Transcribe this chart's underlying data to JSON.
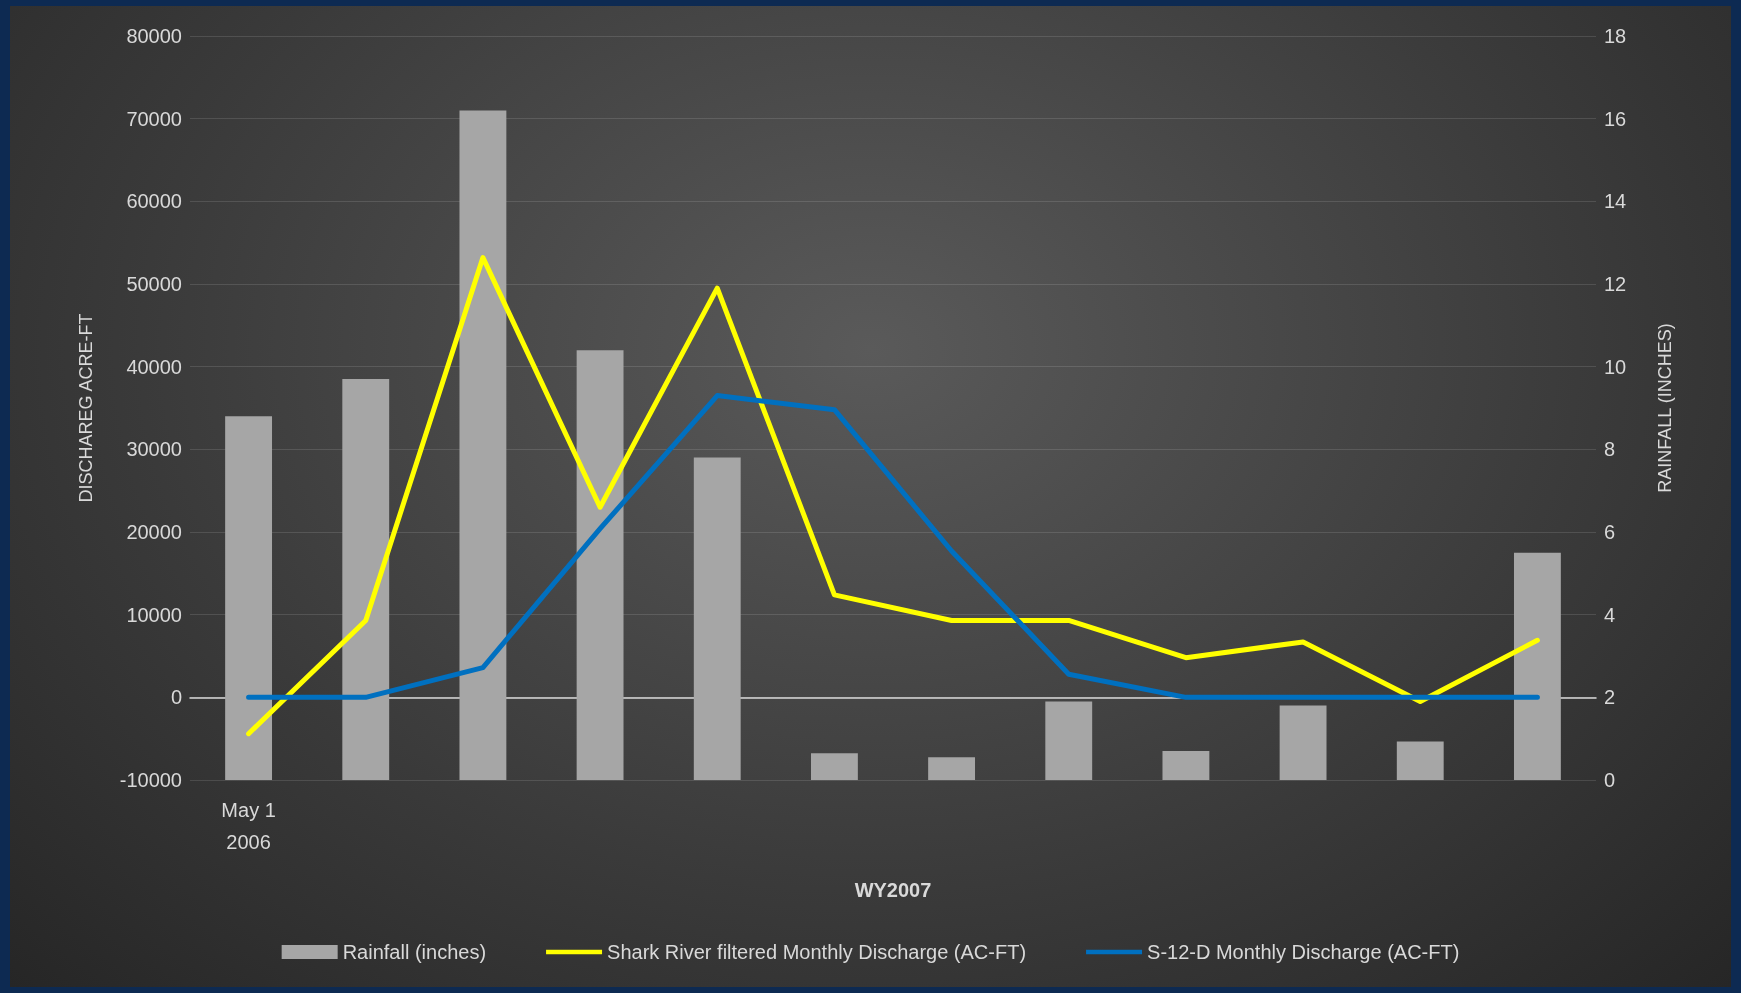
{
  "chart_data": {
    "type": "bar",
    "xlabel": "WY2007",
    "ylabel": "DISCHAREG ACRE-FT",
    "y2label": "RAINFALL (INCHES)",
    "categories": [
      "May 1\n2006",
      null,
      null,
      null,
      null,
      null,
      null,
      null,
      null,
      null,
      null,
      null
    ],
    "series": [
      {
        "name": "Rainfall (inches)",
        "axis": "y2",
        "color": "#a6a6a6",
        "values": [
          8.8,
          9.7,
          16.2,
          10.4,
          7.8,
          0.65,
          0.55,
          1.9,
          0.7,
          1.8,
          0.93,
          5.5
        ]
      },
      {
        "name": "Shark River filtered Monthly Discharge (AC-FT)",
        "type": "line",
        "color": "#ffff00",
        "values": [
          -4400,
          9300,
          53200,
          23000,
          49500,
          12400,
          9300,
          9300,
          4800,
          6700,
          -500,
          6900
        ]
      },
      {
        "name": "S-12-D Monthly Discharge (AC-FT)",
        "type": "line",
        "color": "#0070c0",
        "values": [
          0,
          0,
          3600,
          20400,
          36500,
          34800,
          17700,
          2800,
          0,
          0,
          0,
          0
        ]
      }
    ],
    "ylim": [
      -10000,
      80000
    ],
    "yticks": [
      -10000,
      0,
      10000,
      20000,
      30000,
      40000,
      50000,
      60000,
      70000,
      80000
    ],
    "y2lim": [
      0,
      18
    ],
    "y2ticks": [
      0,
      2,
      4,
      6,
      8,
      10,
      12,
      14,
      16,
      18
    ],
    "grid": "y",
    "legend": "bottom",
    "marker": "none",
    "line_style": "solid"
  }
}
